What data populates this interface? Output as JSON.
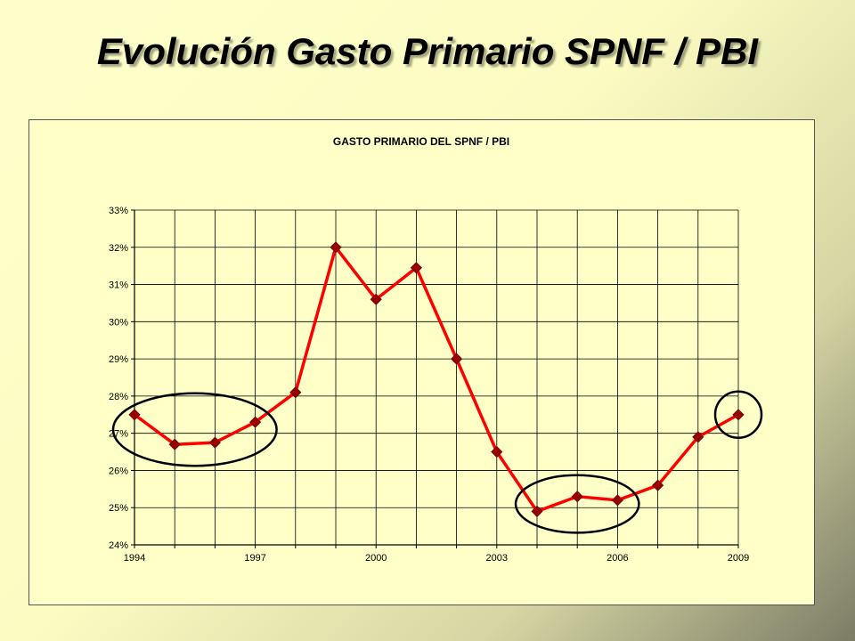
{
  "slide": {
    "title": "Evolución Gasto Primario SPNF / PBI"
  },
  "chart_data": {
    "type": "line",
    "title": "GASTO PRIMARIO DEL SPNF / PBI",
    "xlabel": "",
    "ylabel": "",
    "x": [
      1994,
      1995,
      1996,
      1997,
      1998,
      1999,
      2000,
      2001,
      2002,
      2003,
      2004,
      2005,
      2006,
      2007,
      2008,
      2009
    ],
    "x_tick_labels": [
      "1994",
      "1997",
      "2000",
      "2003",
      "2006",
      "2009"
    ],
    "y_tick_labels": [
      "24%",
      "25%",
      "26%",
      "27%",
      "28%",
      "29%",
      "30%",
      "31%",
      "32%",
      "33%"
    ],
    "ylim": [
      24,
      33
    ],
    "y_unit": "%",
    "grid": true,
    "legend": "none",
    "series": [
      {
        "values": [
          27.5,
          26.7,
          26.75,
          27.3,
          28.1,
          32.0,
          30.6,
          31.45,
          29.0,
          26.5,
          24.9,
          25.3,
          25.2,
          25.6,
          26.9,
          27.5
        ],
        "line_color": "#ff0000",
        "marker_color": "#990000",
        "marker": "diamond"
      }
    ],
    "highlight_ellipses": [
      {
        "x_from": 1994,
        "x_to": 1997
      },
      {
        "x_from": 2004,
        "x_to": 2006
      },
      {
        "x_from": 2009,
        "x_to": 2009
      }
    ]
  }
}
